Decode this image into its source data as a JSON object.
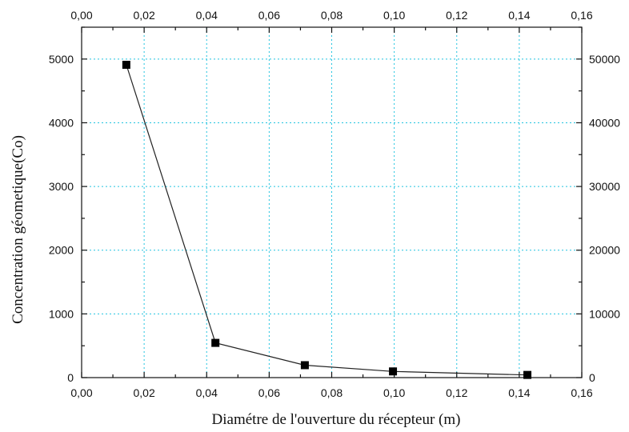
{
  "chart_data": {
    "type": "line",
    "title": "",
    "xlabel": "Diamétre de l'ouverture du récepteur (m)",
    "ylabel": "Concentration géometique(Co)",
    "xlim": [
      0.0,
      0.16
    ],
    "ylim": [
      0,
      5500
    ],
    "y2lim": [
      0,
      55000
    ],
    "x_ticks": [
      0.0,
      0.02,
      0.04,
      0.06,
      0.08,
      0.1,
      0.12,
      0.14,
      0.16
    ],
    "x_tick_labels": [
      "0,00",
      "0,02",
      "0,04",
      "0,06",
      "0,08",
      "0,10",
      "0,12",
      "0,14",
      "0,16"
    ],
    "y_ticks": [
      0,
      1000,
      2000,
      3000,
      4000,
      5000
    ],
    "y_tick_labels": [
      "0",
      "1000",
      "2000",
      "3000",
      "4000",
      "5000"
    ],
    "y2_ticks": [
      0,
      10000,
      20000,
      30000,
      40000,
      50000
    ],
    "y2_tick_labels": [
      "0",
      "10000",
      "20000",
      "30000",
      "40000",
      "50000"
    ],
    "grid": true,
    "grid_color": "#22c4e0",
    "marker": "square",
    "series": [
      {
        "x": [
          0.0143,
          0.0428,
          0.0714,
          0.0996,
          0.1426
        ],
        "y": [
          4910,
          545,
          195,
          97,
          42
        ],
        "color": "#000000"
      }
    ]
  }
}
